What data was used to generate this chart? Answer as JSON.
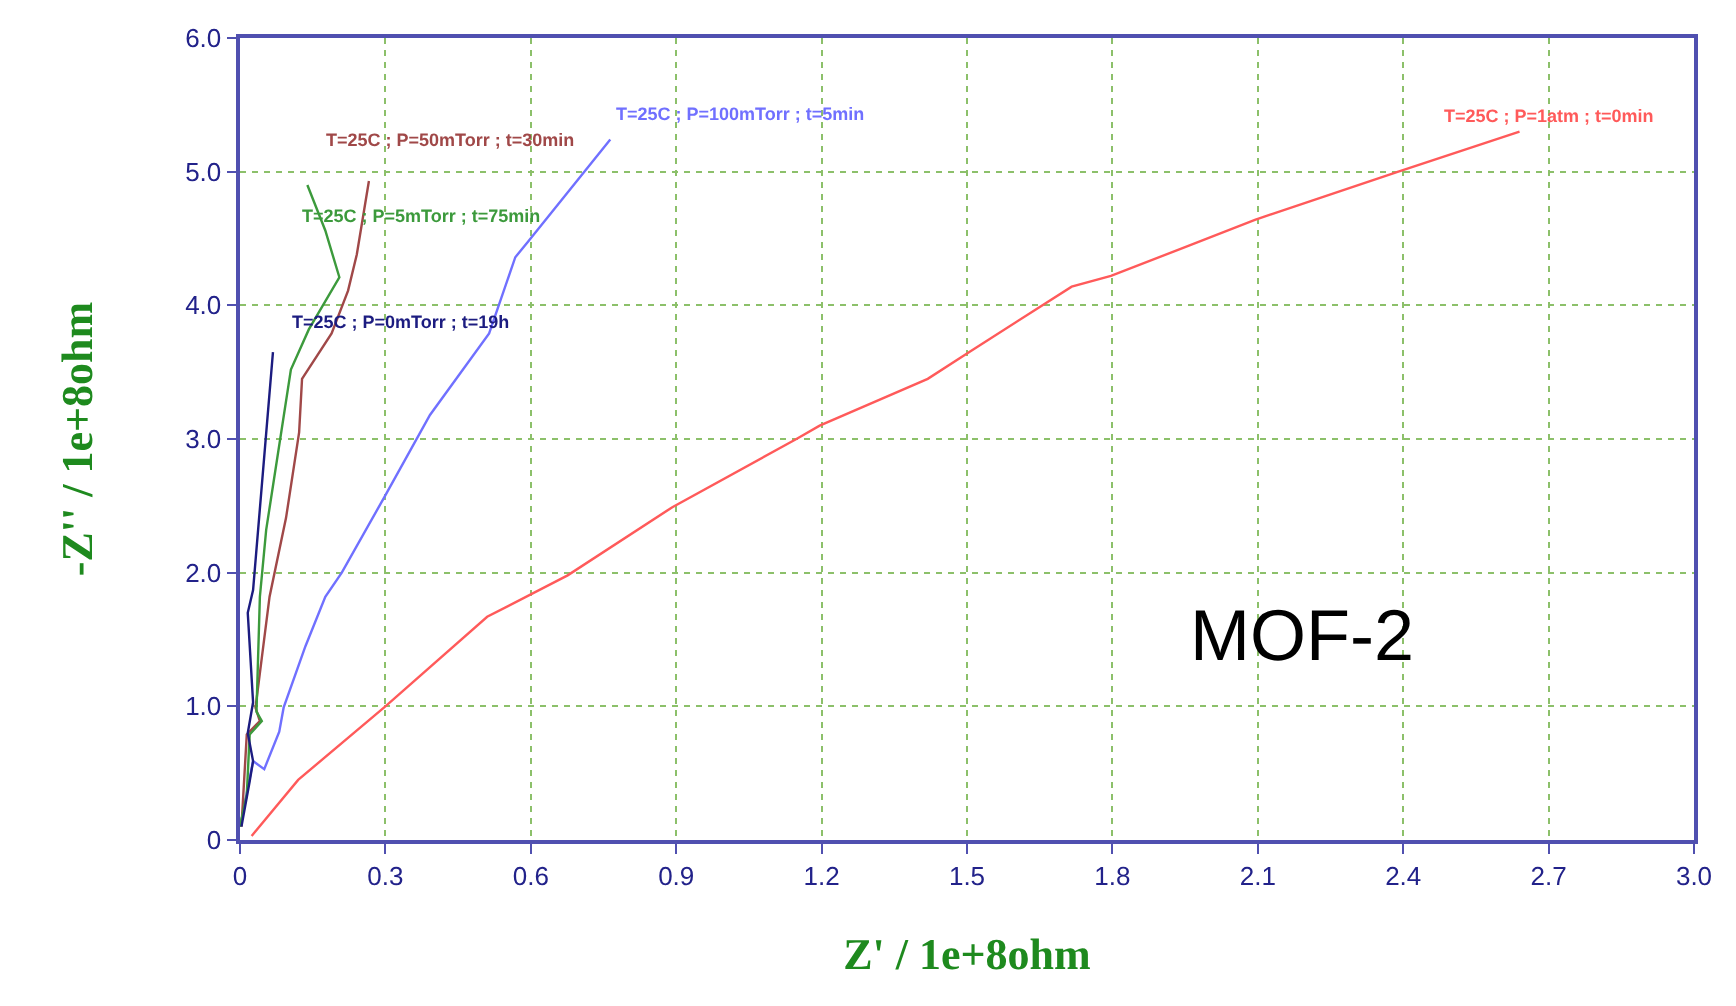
{
  "chart_data": {
    "type": "line",
    "xlabel": "Z' / 1e+8ohm",
    "ylabel": "-Z'' / 1e+8ohm",
    "xlim": [
      0,
      3.0
    ],
    "ylim": [
      0,
      6.0
    ],
    "xticks": [
      0,
      0.3,
      0.6,
      0.9,
      1.2,
      1.5,
      1.8,
      2.1,
      2.4,
      2.7,
      {
        "value": 3.0,
        "label": "3.0"
      }
    ],
    "yticks": [
      0,
      {
        "value": 1.0,
        "label": "1.0"
      },
      {
        "value": 2.0,
        "label": "2.0"
      },
      {
        "value": 3.0,
        "label": "3.0"
      },
      {
        "value": 4.0,
        "label": "4.0"
      },
      {
        "value": 5.0,
        "label": "5.0"
      },
      {
        "value": 6.0,
        "label": "6.0"
      }
    ],
    "grid": true,
    "legend": false,
    "marker": "none",
    "line_style": "solid",
    "series": [
      {
        "name": "T=25C ; P=1atm ; t=0min",
        "color": "#ff5a5a",
        "x": [
          0.024,
          0.12,
          0.3,
          0.51,
          0.676,
          0.892,
          1.148,
          1.196,
          1.419,
          1.5,
          1.716,
          1.797,
          1.946,
          2.094,
          2.39,
          2.64
        ],
        "values": [
          0.03,
          0.45,
          1.0,
          1.67,
          1.98,
          2.49,
          3.0,
          3.1,
          3.45,
          3.64,
          4.14,
          4.22,
          4.43,
          4.64,
          5.0,
          5.3
        ]
      },
      {
        "name": "T=25C ; P=100mTorr ; t=5min",
        "color": "#7070ff",
        "x": [
          0.003,
          0.027,
          0.05,
          0.081,
          0.09,
          0.135,
          0.176,
          0.21,
          0.297,
          0.392,
          0.514,
          0.568,
          0.595,
          0.764
        ],
        "values": [
          0.15,
          0.59,
          0.53,
          0.81,
          0.99,
          1.45,
          1.82,
          2.0,
          2.56,
          3.18,
          3.79,
          4.36,
          4.48,
          5.24
        ]
      },
      {
        "name": "T=25C ; P=50mTorr ; t=30min",
        "color": "#a04848",
        "x": [
          0.003,
          0.014,
          0.041,
          0.032,
          0.061,
          0.095,
          0.122,
          0.128,
          0.189,
          0.223,
          0.241,
          0.266
        ],
        "values": [
          0.1,
          0.79,
          0.89,
          0.99,
          1.82,
          2.41,
          3.05,
          3.45,
          3.79,
          4.11,
          4.38,
          4.93
        ]
      },
      {
        "name": "T=25C ; P=5mTorr ; t=75min",
        "color": "#3c9a3c",
        "x": [
          0.0,
          0.014,
          0.02,
          0.045,
          0.034,
          0.041,
          0.054,
          0.105,
          0.142,
          0.205,
          0.176,
          0.139
        ],
        "values": [
          0.1,
          0.34,
          0.79,
          0.89,
          0.96,
          1.82,
          2.32,
          3.52,
          3.82,
          4.21,
          4.56,
          4.9
        ]
      },
      {
        "name": "T=25C ; P=0mTorr ; t=19h",
        "color": "#1c1c80",
        "x": [
          0.003,
          0.02,
          0.027,
          0.016,
          0.027,
          0.016,
          0.027,
          0.068
        ],
        "values": [
          0.1,
          0.44,
          0.59,
          0.8,
          1.03,
          1.7,
          1.87,
          3.65
        ]
      }
    ],
    "annotations": [
      "MOF-2"
    ]
  }
}
